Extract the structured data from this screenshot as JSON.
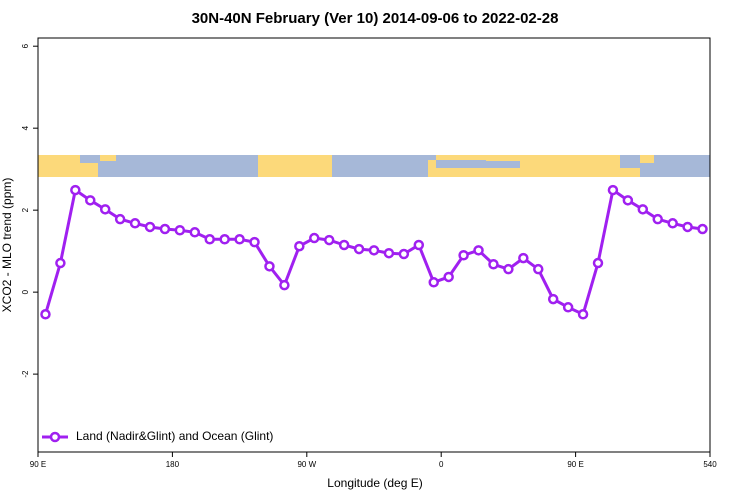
{
  "chart_data": {
    "type": "line",
    "title": "30N-40N February (Ver 10)   2014-09-06 to 2022-02-28",
    "x_label": "Longitude (deg E)",
    "y_label": "XCO2 - MLO trend (ppm)",
    "xlim": [
      90,
      540
    ],
    "xticks": [
      {
        "value": 90,
        "label": "90 E"
      },
      180,
      {
        "value": 270,
        "label": "90 W"
      },
      {
        "value": 360,
        "label": "0"
      },
      {
        "value": 450,
        "label": "90 E"
      },
      540
    ],
    "ylim": [
      -3.9,
      6.2
    ],
    "yticks": [
      -2,
      0,
      2,
      4,
      6
    ],
    "legend": "bottom-left",
    "series": [
      {
        "name": "Land (Nadir&Glint) and Ocean (Glint)",
        "color": "#a020f0",
        "x": [
          95,
          105,
          115,
          125,
          135,
          145,
          155,
          165,
          175,
          185,
          195,
          205,
          215,
          225,
          235,
          245,
          255,
          265,
          275,
          285,
          295,
          305,
          315,
          325,
          335,
          345,
          355,
          365,
          375,
          385,
          395,
          405,
          415,
          425,
          435,
          445,
          455,
          465,
          475,
          485,
          495,
          505,
          515,
          525,
          535
        ],
        "values": [
          -0.54,
          0.71,
          2.49,
          2.24,
          2.02,
          1.78,
          1.68,
          1.59,
          1.54,
          1.51,
          1.46,
          1.29,
          1.29,
          1.29,
          1.22,
          0.63,
          0.17,
          1.12,
          1.32,
          1.27,
          1.15,
          1.05,
          1.02,
          0.95,
          0.93,
          1.15,
          0.24,
          0.37,
          0.9,
          1.02,
          0.68,
          0.56,
          0.83,
          0.56,
          -0.17,
          -0.37,
          -0.54,
          0.71,
          2.49,
          2.24,
          2.02,
          1.78,
          1.68,
          1.59,
          1.54
        ]
      }
    ]
  }
}
